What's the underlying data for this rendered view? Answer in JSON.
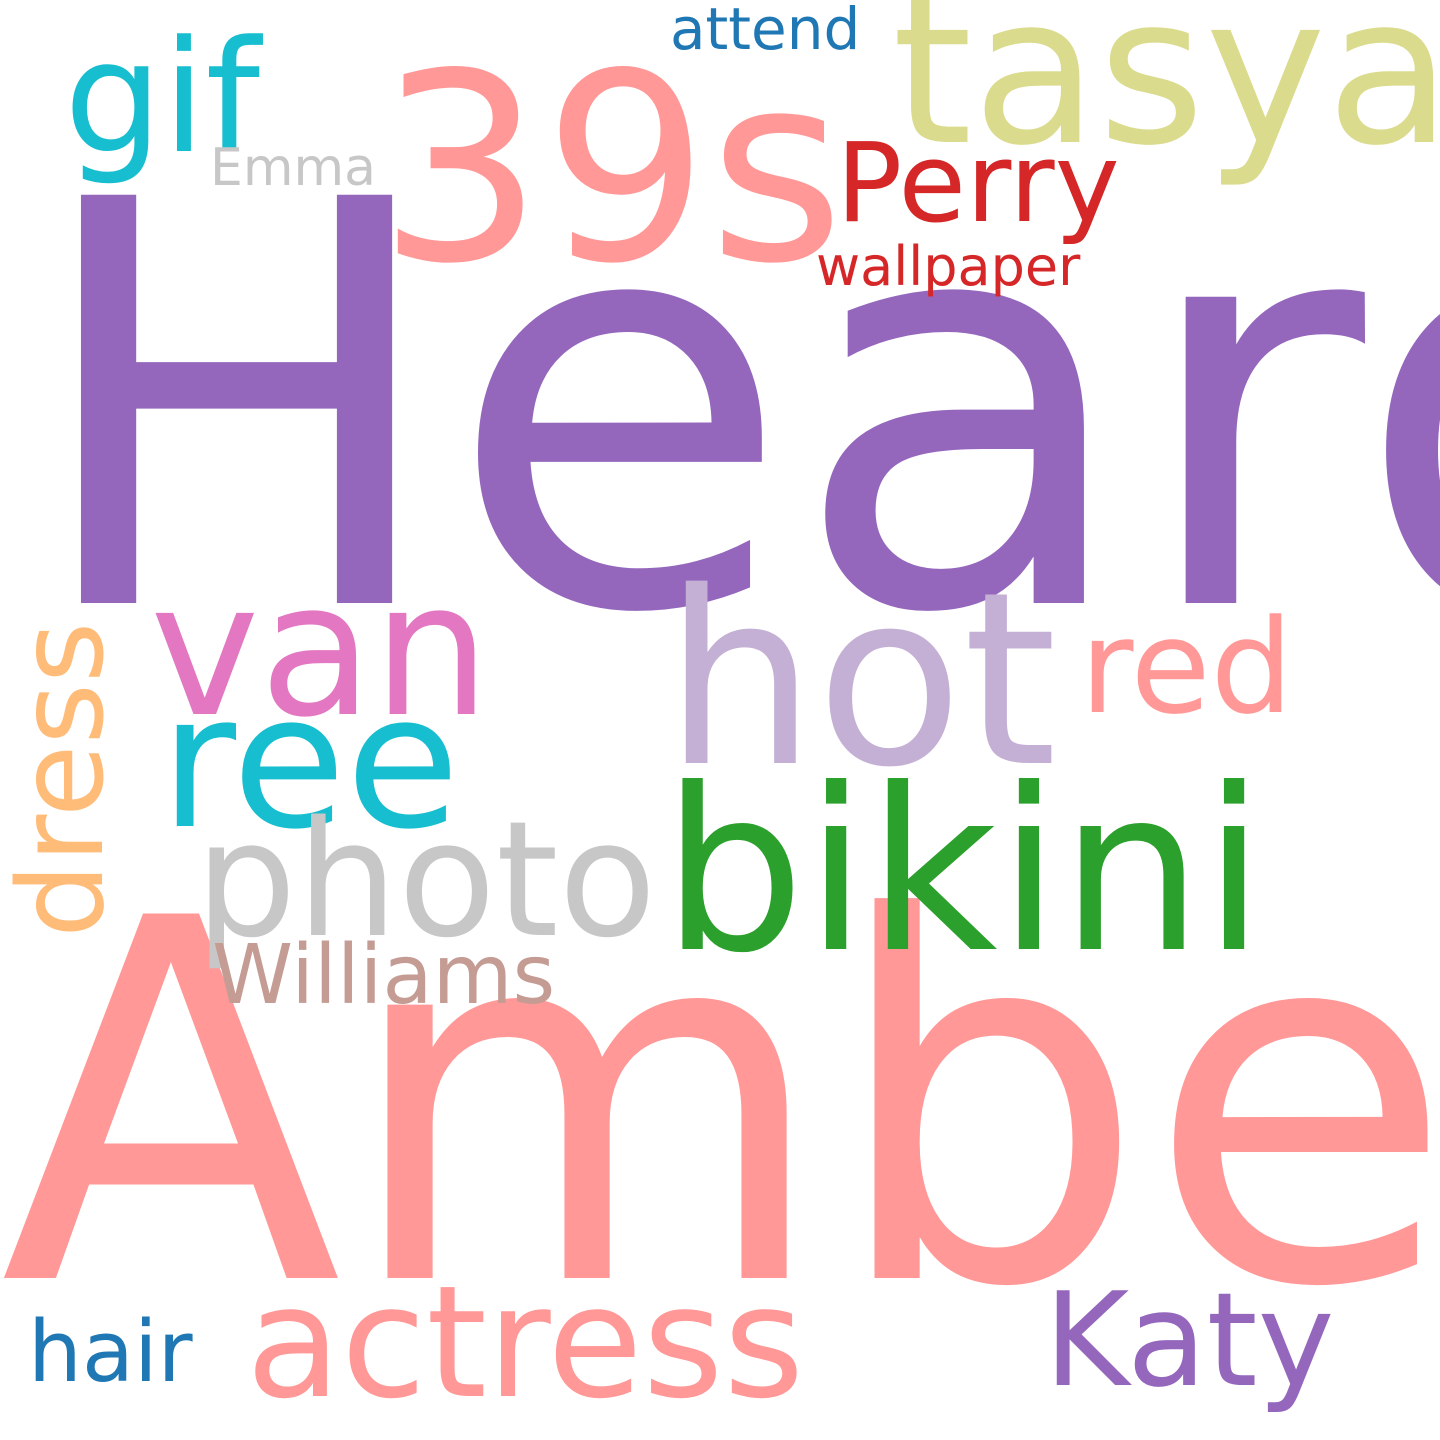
{
  "words": [
    {
      "id": "heard",
      "text": "Heard",
      "color": "#9467bd"
    },
    {
      "id": "amber",
      "text": "Amber",
      "color": "#ff9896"
    },
    {
      "id": "39s",
      "text": "39s",
      "color": "#ff9896"
    },
    {
      "id": "tasya",
      "text": "tasya",
      "color": "#dbdb8d"
    },
    {
      "id": "hot",
      "text": "hot",
      "color": "#c5b0d5"
    },
    {
      "id": "bikini",
      "text": "bikini",
      "color": "#2ca02c"
    },
    {
      "id": "van",
      "text": "van",
      "color": "#e377c2"
    },
    {
      "id": "ree",
      "text": "ree",
      "color": "#17becf"
    },
    {
      "id": "photo",
      "text": "photo",
      "color": "#c7c7c7"
    },
    {
      "id": "actress",
      "text": "actress",
      "color": "#ff9896"
    },
    {
      "id": "red",
      "text": "red",
      "color": "#ff9896"
    },
    {
      "id": "katy",
      "text": "Katy",
      "color": "#9467bd"
    },
    {
      "id": "gif",
      "text": "gif",
      "color": "#17becf"
    },
    {
      "id": "perry",
      "text": "Perry",
      "color": "#d62728"
    },
    {
      "id": "williams",
      "text": "Williams",
      "color": "#c49c94"
    },
    {
      "id": "hair",
      "text": "hair",
      "color": "#1f77b4"
    },
    {
      "id": "dress",
      "text": "dress",
      "color": "#ffbb78"
    },
    {
      "id": "wallpaper",
      "text": "wallpaper",
      "color": "#d62728"
    },
    {
      "id": "attend",
      "text": "attend",
      "color": "#1f77b4"
    },
    {
      "id": "emma",
      "text": "Emma",
      "color": "#c7c7c7"
    }
  ]
}
